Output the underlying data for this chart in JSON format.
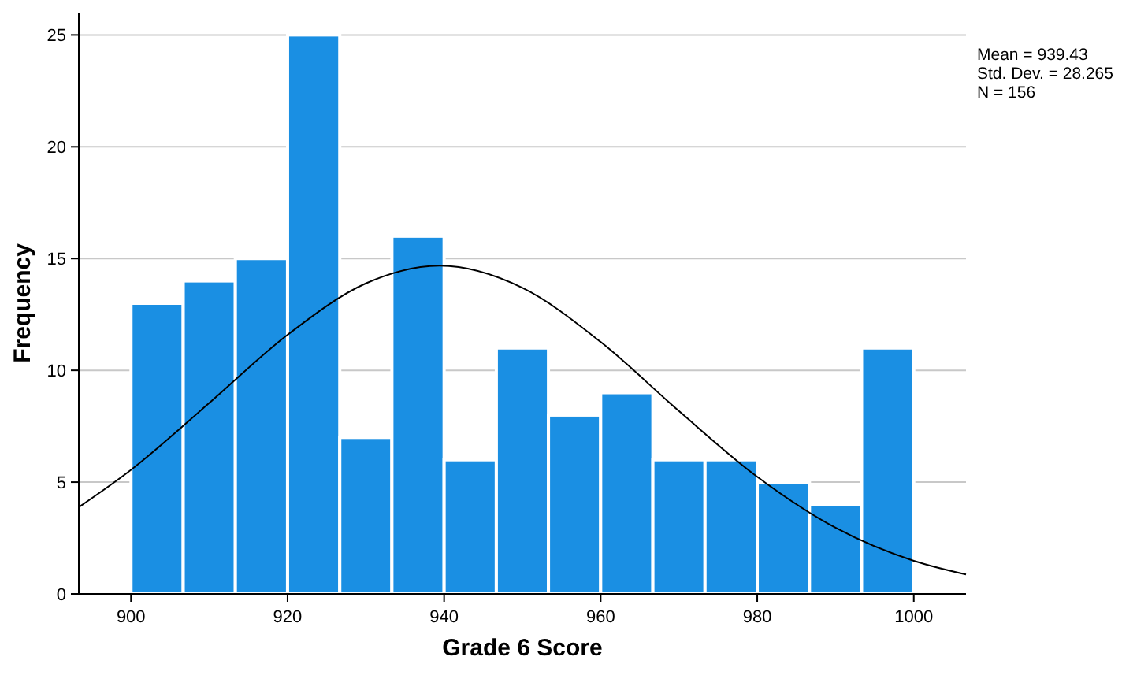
{
  "chart_data": {
    "type": "histogram",
    "xlabel": "Grade 6 Score",
    "ylabel": "Frequency",
    "bins": [
      900,
      906.67,
      913.33,
      920,
      926.67,
      933.33,
      940,
      946.67,
      953.33,
      960,
      966.67,
      973.33,
      980,
      986.67,
      993.33,
      1000
    ],
    "series": [
      {
        "color": "#1a8fe3",
        "values": [
          13,
          14,
          15,
          25,
          7,
          16,
          6,
          11,
          8,
          9,
          6,
          6,
          5,
          4,
          11
        ]
      },
      {
        "type": "line",
        "color": "#000000",
        "x": [
          893.33,
          900,
          910,
          920,
          930,
          939.43,
          950,
          960,
          970,
          980,
          990,
          1000,
          1006.67
        ],
        "values": [
          3.88,
          5.55,
          8.54,
          11.59,
          13.89,
          14.68,
          13.69,
          11.27,
          8.18,
          5.24,
          2.96,
          1.48,
          0.87
        ]
      }
    ],
    "xlim": [
      893.33,
      1006.67
    ],
    "xticks": [
      900,
      920,
      940,
      960,
      980,
      1000
    ],
    "ylim": [
      0,
      26
    ],
    "yticks": [
      0,
      5,
      10,
      15,
      20,
      25
    ],
    "grid": "y",
    "annotations": [
      "Mean = 939.43",
      "Std. Dev. = 28.265",
      "N = 156"
    ]
  }
}
